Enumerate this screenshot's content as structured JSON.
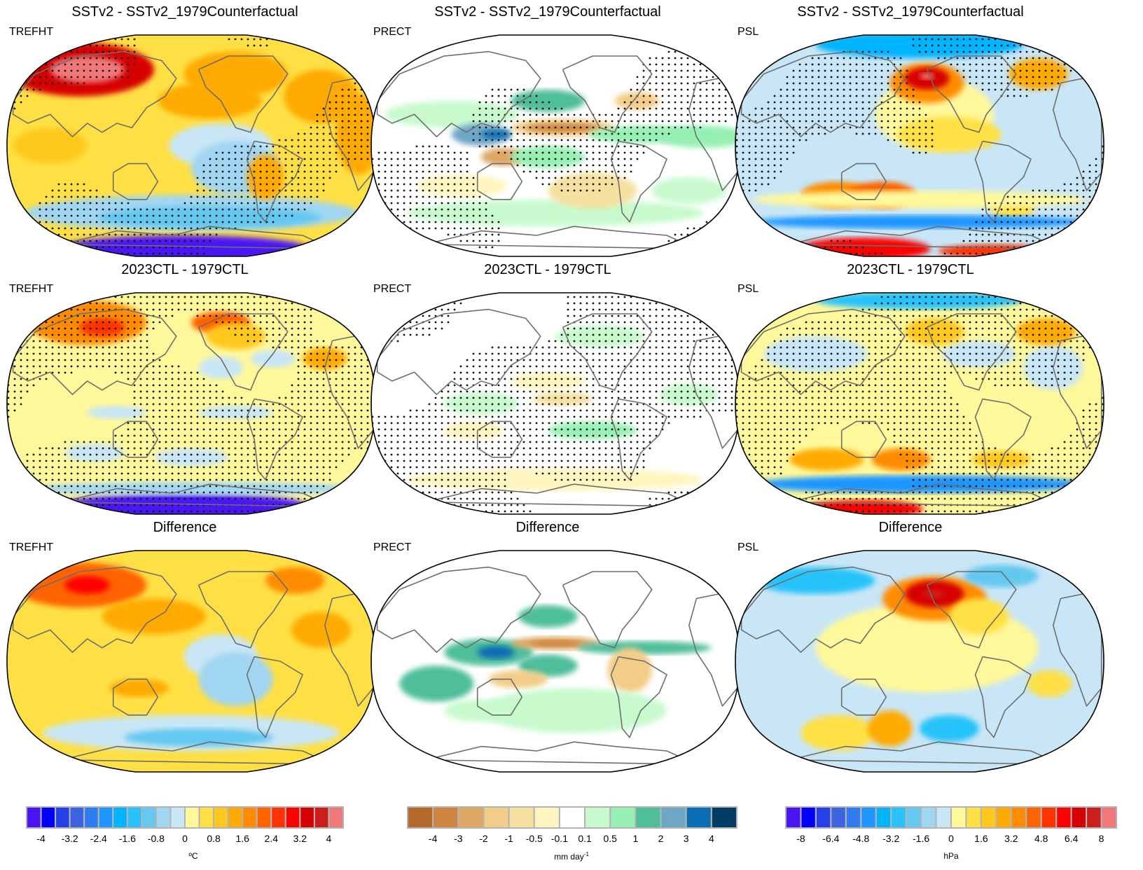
{
  "chart_data": [
    {
      "type": "heatmap",
      "row": 0,
      "col": 0,
      "title": "SSTv2 - SSTv2_1979Counterfactual",
      "variable": "TREFHT",
      "projection": "Robinson (Pacific-centered)",
      "stippling": true,
      "colorbar": "temperature",
      "pattern": "Strong warming over Siberia/Eurasia (>3.6 °C), broad warming 0.4-1.6 °C over Pacific and continents, cooling in eastern/southern Pacific, strong cooling (< -4 °C) over Antarctica"
    },
    {
      "type": "heatmap",
      "row": 0,
      "col": 1,
      "title": "SSTv2 - SSTv2_1979Counterfactual",
      "variable": "PRECT",
      "projection": "Robinson (Pacific-centered)",
      "stippling": true,
      "colorbar": "precip",
      "pattern": "Wet anomaly (1-3 mm/day) over Maritime Continent/West Pacific, dry anomaly (-1 to -3 mm/day) in central equatorial Pacific, ITCZ wetting over Atlantic"
    },
    {
      "type": "heatmap",
      "row": 0,
      "col": 2,
      "title": "SSTv2 - SSTv2_1979Counterfactual",
      "variable": "PSL",
      "projection": "Robinson (Pacific-centered)",
      "stippling": true,
      "colorbar": "pressure",
      "pattern": "Strong positive anomaly over Gulf of Alaska (>6.4 hPa), positive anomalies in southern midlatitudes, negative band around Antarctica, strong positive over Antarctica interior"
    },
    {
      "type": "heatmap",
      "row": 1,
      "col": 0,
      "title": "2023CTL - 1979CTL",
      "variable": "TREFHT",
      "projection": "Robinson (Pacific-centered)",
      "stippling": true,
      "colorbar": "temperature",
      "pattern": "Warming over Eurasia and northern North America (1-2.4 °C), weak warming 0-0.4 °C over most oceans, patches of weak cooling, strong cooling over Antarctica"
    },
    {
      "type": "heatmap",
      "row": 1,
      "col": 1,
      "title": "2023CTL - 1979CTL",
      "variable": "PRECT",
      "projection": "Robinson (Pacific-centered)",
      "stippling": true,
      "colorbar": "precip",
      "pattern": "Weak mixed anomalies, mostly within ±0.5 mm/day, slight wetting in West Pacific"
    },
    {
      "type": "heatmap",
      "row": 1,
      "col": 2,
      "title": "2023CTL - 1979CTL",
      "variable": "PSL",
      "projection": "Robinson (Pacific-centered)",
      "stippling": true,
      "colorbar": "pressure",
      "pattern": "Weak positive over Pacific, positive band in southern midlatitudes (1.6-3.2 hPa), negative ring around Antarctica, strong positive over Antarctica interior"
    },
    {
      "type": "heatmap",
      "row": 2,
      "col": 0,
      "title": "Difference",
      "variable": "TREFHT",
      "projection": "Robinson (Pacific-centered)",
      "stippling": false,
      "colorbar": "temperature",
      "pattern": "Warming 0.4-2.4 °C widespread, strongest over Siberia; weak cooling in southeast Pacific and Southern Ocean"
    },
    {
      "type": "heatmap",
      "row": 2,
      "col": 1,
      "title": "Difference",
      "variable": "PRECT",
      "projection": "Robinson (Pacific-centered)",
      "stippling": false,
      "colorbar": "precip",
      "pattern": "Wetting over Maritime Continent and SPCZ (1-3 mm/day), drying in central equatorial Pacific (-1 to -3 mm/day)"
    },
    {
      "type": "heatmap",
      "row": 2,
      "col": 2,
      "title": "Difference",
      "variable": "PSL",
      "projection": "Robinson (Pacific-centered)",
      "stippling": false,
      "colorbar": "pressure",
      "pattern": "Strong positive over Gulf of Alaska (~6.4 hPa), negative over Arctic and North Atlantic, weak positive over tropical Pacific"
    }
  ],
  "colorbars": {
    "temperature": {
      "unit": "ºC",
      "ticks": [
        "-4",
        "-3.2",
        "-2.4",
        "-1.6",
        "-0.8",
        "0",
        "0.8",
        "1.6",
        "2.4",
        "3.2",
        "4"
      ],
      "levels": [
        -4,
        -3.6,
        -3.2,
        -2.8,
        -2.4,
        -2,
        -1.6,
        -1.2,
        -0.8,
        -0.4,
        0,
        0.4,
        0.8,
        1.2,
        1.6,
        2,
        2.4,
        2.8,
        3.2,
        3.6,
        4
      ],
      "colors": [
        "#4b14f5",
        "#0000ff",
        "#2640e8",
        "#3c64e0",
        "#2f7cf0",
        "#1e96ff",
        "#00b4ff",
        "#28c3fa",
        "#64c8f0",
        "#a0d6f2",
        "#c8e6f6",
        "#fff89a",
        "#ffe044",
        "#ffc81e",
        "#ffaa00",
        "#ff8c00",
        "#ff6400",
        "#ff3200",
        "#ff0000",
        "#d70000",
        "#cd1e1e",
        "#f07878"
      ]
    },
    "precip": {
      "unit": "mm day",
      "unit_sup": "-1",
      "ticks": [
        "-4",
        "-3",
        "-2",
        "-1",
        "-0.5",
        "-0.1",
        "0.1",
        "0.5",
        "1",
        "2",
        "3",
        "4"
      ],
      "levels": [
        -4,
        -3,
        -2,
        -1,
        -0.5,
        -0.1,
        0.1,
        0.5,
        1,
        2,
        3,
        4
      ],
      "colors": [
        "#b46a2a",
        "#cd853f",
        "#dea764",
        "#f3cc87",
        "#f5e09f",
        "#fff5be",
        "#ffffff",
        "#c8facd",
        "#96f0b4",
        "#50be9b",
        "#6ea6c8",
        "#096eb4",
        "#003c64"
      ]
    },
    "pressure": {
      "unit": "hPa",
      "ticks": [
        "-8",
        "-6.4",
        "-4.8",
        "-3.2",
        "-1.6",
        "0",
        "1.6",
        "3.2",
        "4.8",
        "6.4",
        "8"
      ],
      "levels": [
        -8,
        -7.2,
        -6.4,
        -5.6,
        -4.8,
        -4,
        -3.2,
        -2.4,
        -1.6,
        -0.8,
        0,
        0.8,
        1.6,
        2.4,
        3.2,
        4,
        4.8,
        5.6,
        6.4,
        7.2,
        8
      ],
      "colors": [
        "#4b14f5",
        "#0000ff",
        "#2640e8",
        "#3c64e0",
        "#2f7cf0",
        "#1e96ff",
        "#00b4ff",
        "#28c3fa",
        "#64c8f0",
        "#a0d6f2",
        "#c8e6f6",
        "#fff89a",
        "#ffe044",
        "#ffc81e",
        "#ffaa00",
        "#ff8c00",
        "#ff6400",
        "#ff3200",
        "#ff0000",
        "#d70000",
        "#cd1e1e",
        "#f07878"
      ]
    }
  }
}
